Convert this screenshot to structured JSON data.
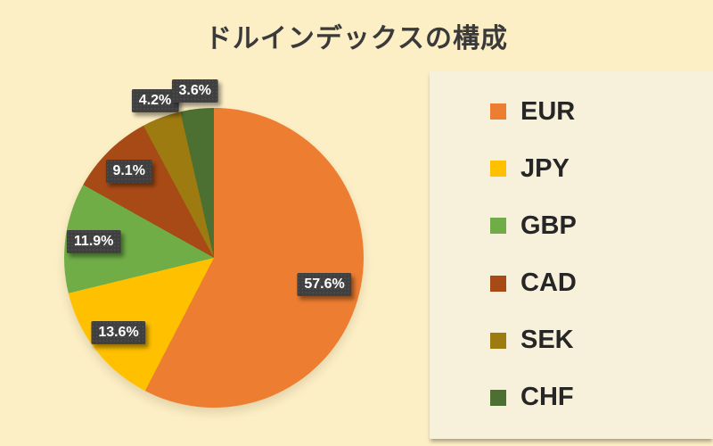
{
  "title": "ドルインデックスの構成",
  "chart_data": {
    "type": "pie",
    "title": "ドルインデックスの構成",
    "legend_position": "right",
    "start_angle_deg": 0,
    "direction": "clockwise",
    "slices": [
      {
        "label": "EUR",
        "value_pct": 57.6,
        "display": "57.6%",
        "color": "#ED7D31"
      },
      {
        "label": "JPY",
        "value_pct": 13.6,
        "display": "13.6%",
        "color": "#FFC000"
      },
      {
        "label": "GBP",
        "value_pct": 11.9,
        "display": "11.9%",
        "color": "#70AD47"
      },
      {
        "label": "CAD",
        "value_pct": 9.1,
        "display": "9.1%",
        "color": "#A84A15"
      },
      {
        "label": "SEK",
        "value_pct": 4.2,
        "display": "4.2%",
        "color": "#9E7B10"
      },
      {
        "label": "CHF",
        "value_pct": 3.6,
        "display": "3.6%",
        "color": "#4C7031"
      }
    ]
  },
  "colors": {
    "background": "#FCEEC5",
    "legend_panel": "#F7F1DC",
    "label_box": "#3F3F3F",
    "label_text": "#FFFFFF",
    "title_text": "#3A3A3A",
    "legend_text": "#262626"
  }
}
